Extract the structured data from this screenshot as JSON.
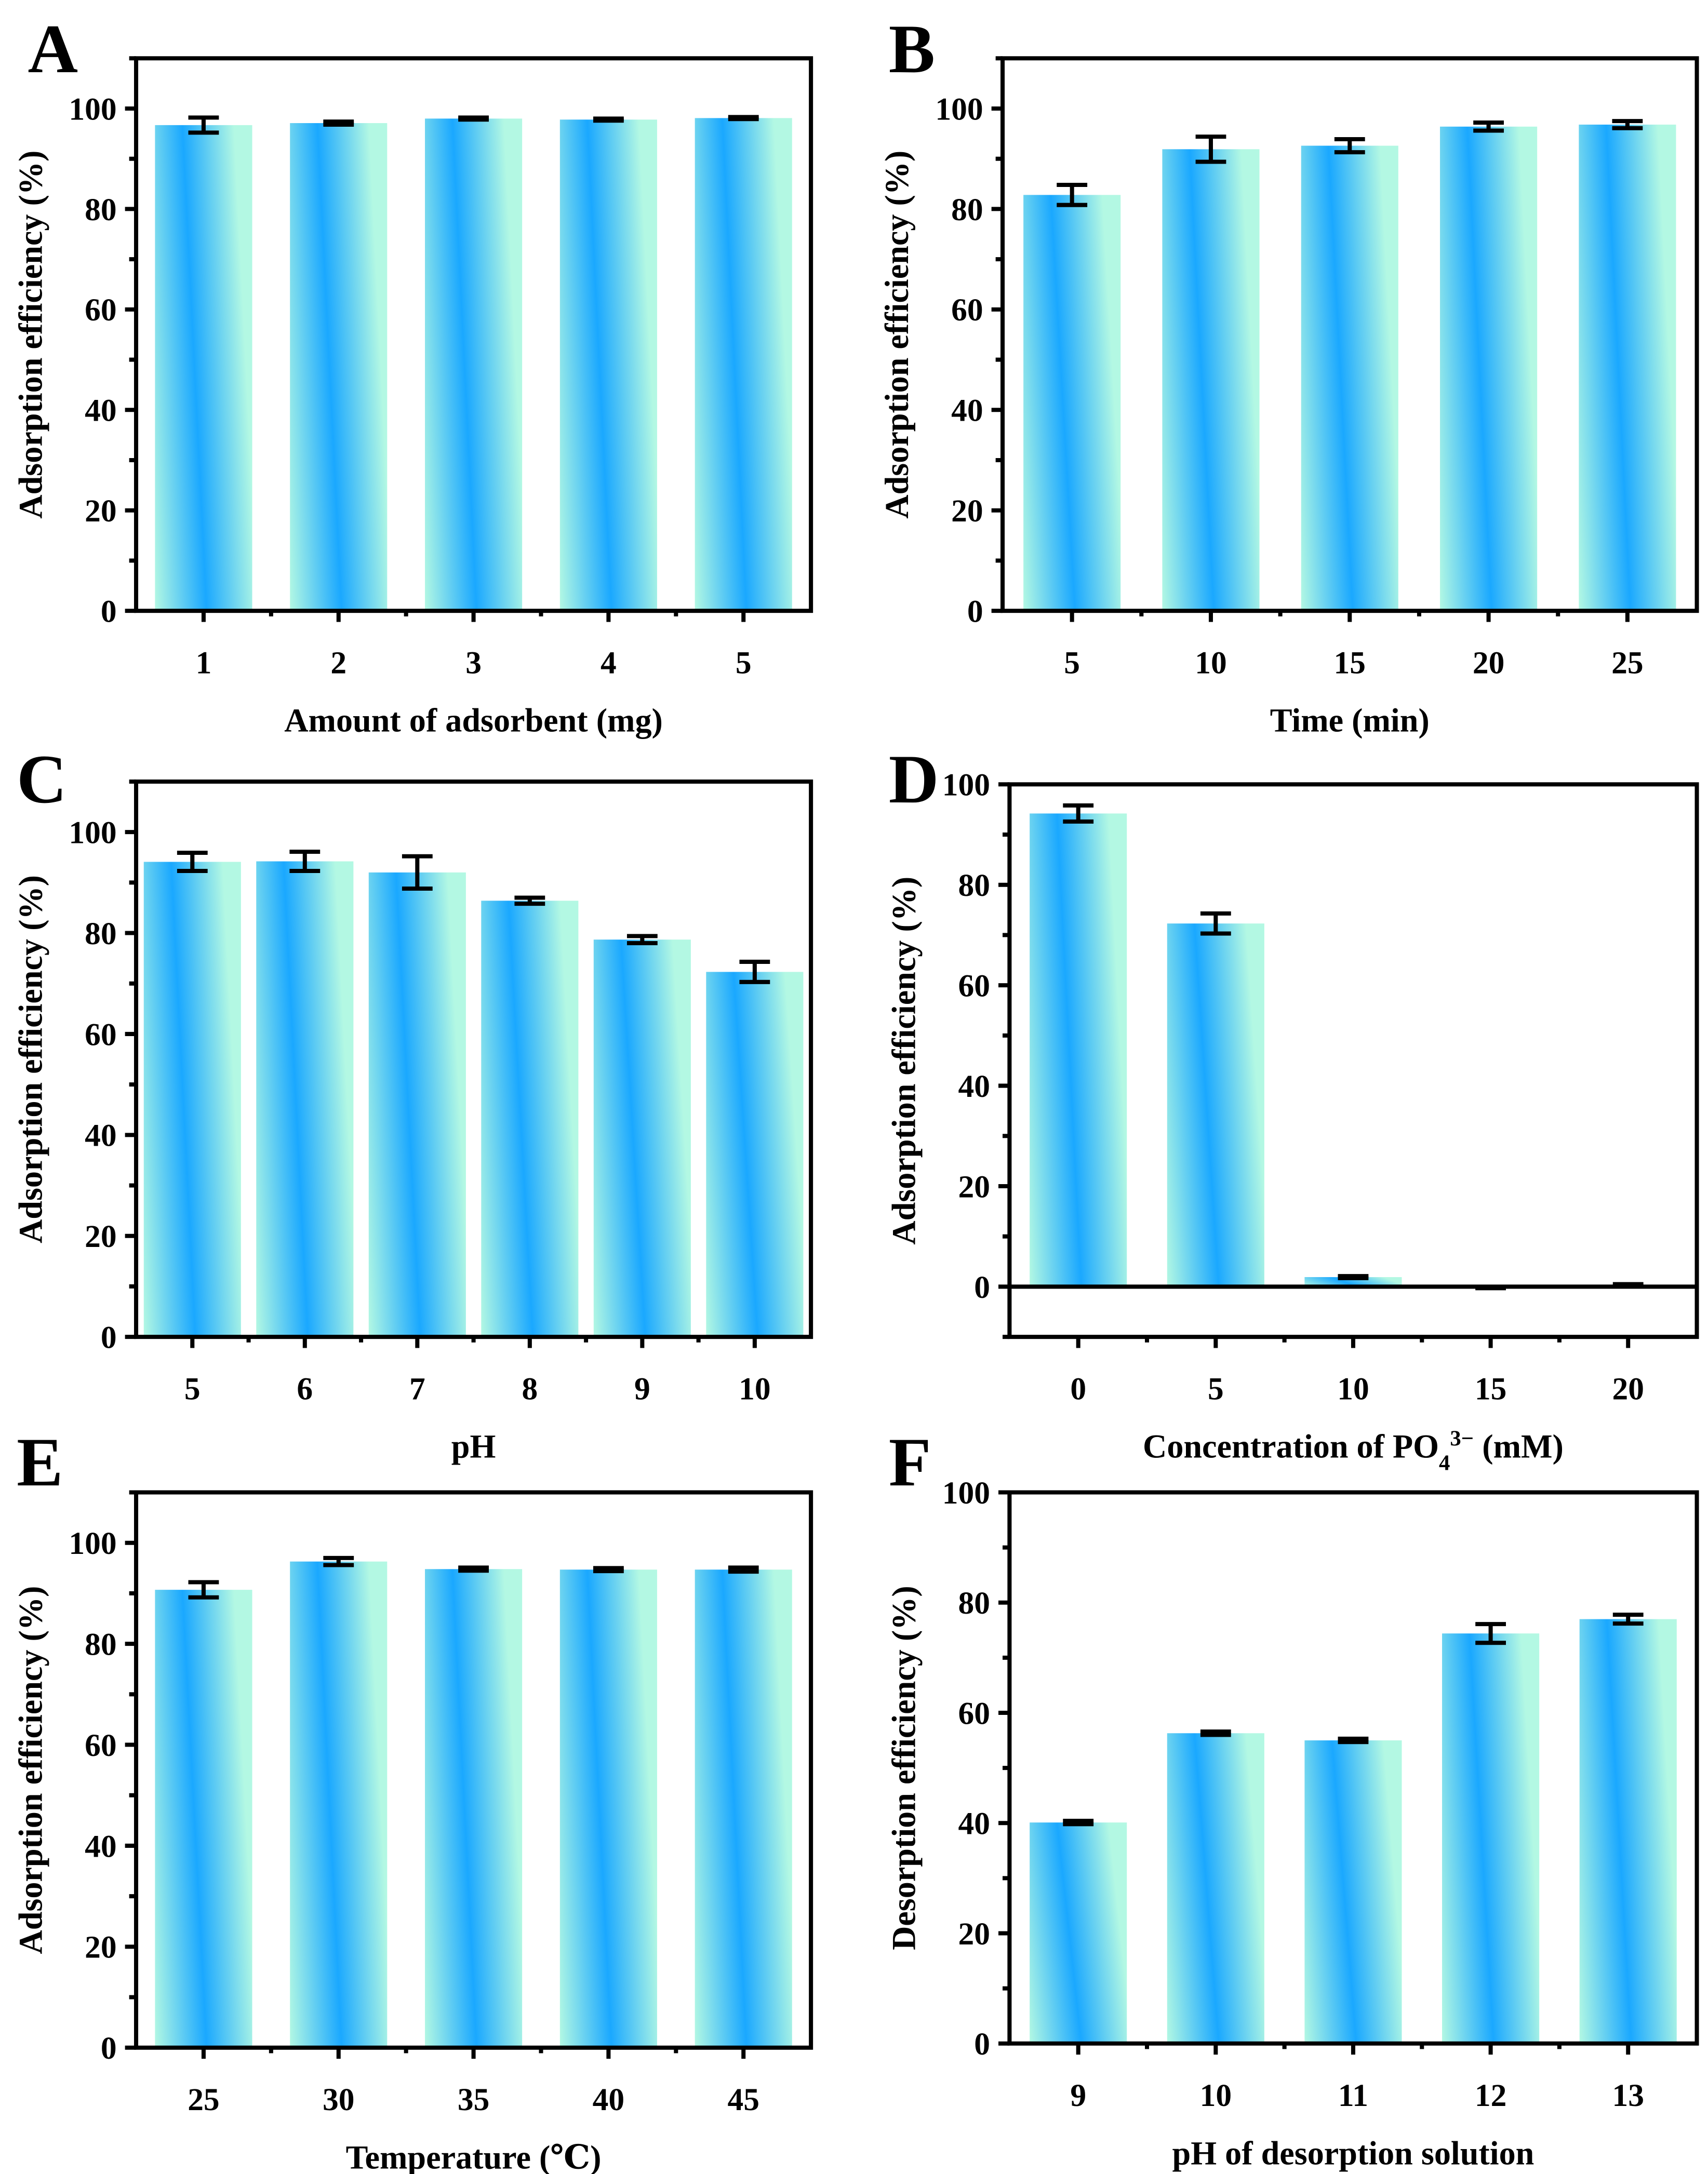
{
  "chart_data": [
    {
      "panel": "A",
      "type": "bar",
      "categories": [
        "1",
        "2",
        "3",
        "4",
        "5"
      ],
      "values": [
        96.7,
        97.1,
        98.0,
        97.8,
        98.1
      ],
      "errors": [
        1.5,
        0.3,
        0.2,
        0.2,
        0.2
      ],
      "xlabel": "Amount of adsorbent (mg)",
      "ylabel": "Adsorption efficiency (%)",
      "ylim": [
        0,
        110
      ],
      "yticks": [
        0,
        20,
        40,
        60,
        80,
        100
      ]
    },
    {
      "panel": "B",
      "type": "bar",
      "categories": [
        "5",
        "10",
        "15",
        "20",
        "25"
      ],
      "values": [
        82.8,
        91.9,
        92.6,
        96.4,
        96.8
      ],
      "errors": [
        2.0,
        2.5,
        1.3,
        0.8,
        0.7
      ],
      "xlabel": "Time (min)",
      "ylabel": "Adsorption efficiency (%)",
      "ylim": [
        0,
        110
      ],
      "yticks": [
        0,
        20,
        40,
        60,
        80,
        100
      ]
    },
    {
      "panel": "C",
      "type": "bar",
      "categories": [
        "5",
        "6",
        "7",
        "8",
        "9",
        "10"
      ],
      "values": [
        94.1,
        94.2,
        92.0,
        86.4,
        78.7,
        72.3
      ],
      "errors": [
        1.8,
        1.9,
        3.2,
        0.6,
        0.7,
        2.0
      ],
      "xlabel": "pH",
      "ylabel": "Adsorption efficiency (%)",
      "ylim": [
        0,
        110
      ],
      "yticks": [
        0,
        20,
        40,
        60,
        80,
        100
      ]
    },
    {
      "panel": "D",
      "type": "bar",
      "categories": [
        "0",
        "5",
        "10",
        "15",
        "20"
      ],
      "values": [
        94.2,
        72.3,
        1.9,
        -0.2,
        0.3
      ],
      "errors": [
        1.6,
        2.0,
        0.2,
        0.1,
        0.2
      ],
      "xlabel_parts": [
        {
          "t": "Concentration of PO"
        },
        {
          "t": "4",
          "sub": true
        },
        {
          "t": "3−",
          "sup": true
        },
        {
          "t": " (mM)"
        }
      ],
      "ylabel": "Adsorption efficiency (%)",
      "ylim": [
        -10,
        100
      ],
      "yticks": [
        0,
        20,
        40,
        60,
        80,
        100
      ]
    },
    {
      "panel": "E",
      "type": "bar",
      "categories": [
        "25",
        "30",
        "35",
        "40",
        "45"
      ],
      "values": [
        90.7,
        96.3,
        94.8,
        94.7,
        94.7
      ],
      "errors": [
        1.5,
        0.7,
        0.3,
        0.3,
        0.4
      ],
      "xlabel": "Temperature (℃)",
      "ylabel": "Adsorption efficiency (%)",
      "ylim": [
        0,
        110
      ],
      "yticks": [
        0,
        20,
        40,
        60,
        80,
        100
      ]
    },
    {
      "panel": "F",
      "type": "bar",
      "categories": [
        "9",
        "10",
        "11",
        "12",
        "13"
      ],
      "values": [
        40.1,
        56.3,
        55.0,
        74.4,
        77.0
      ],
      "errors": [
        0.3,
        0.3,
        0.3,
        1.7,
        0.8
      ],
      "xlabel": "pH of desorption solution",
      "ylabel": "Desorption efficiency (%)",
      "ylim": [
        0,
        100
      ],
      "yticks": [
        0,
        20,
        40,
        60,
        80,
        100
      ]
    }
  ],
  "colors": {
    "bar_light": "#b3f8e3",
    "bar_blue": "#1aa8ff",
    "axis": "#000000"
  }
}
